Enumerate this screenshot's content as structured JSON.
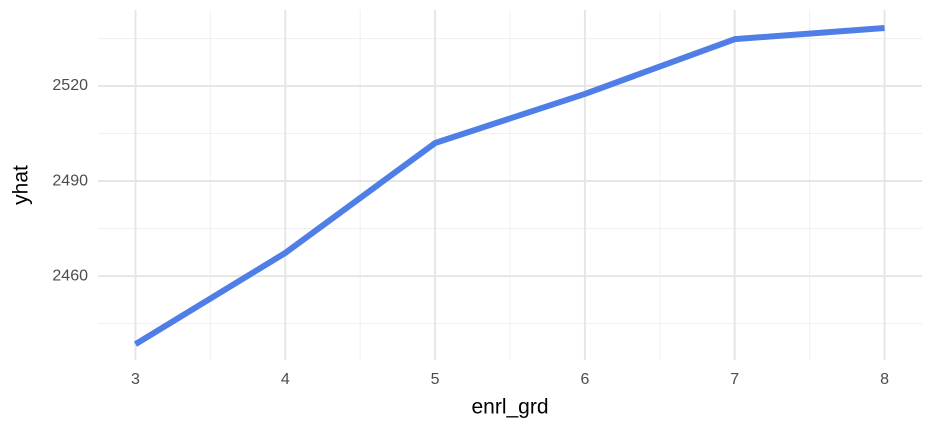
{
  "chart_data": {
    "type": "line",
    "x_label": "enrl_grd",
    "y_label": "yhat",
    "x": [
      3,
      4,
      5,
      6,
      7,
      8
    ],
    "series": [
      {
        "name": "yhat",
        "color": "#4f7fe6",
        "values": [
          2438.5,
          2467.3,
          2502,
          2517.5,
          2534.8,
          2538.3
        ]
      }
    ],
    "xlim": [
      2.75,
      8.25
    ],
    "xticks": [
      3,
      4,
      5,
      6,
      7,
      8
    ],
    "ylim": [
      2433.5,
      2544
    ],
    "yticks": [
      2460,
      2490,
      2520
    ],
    "minor_xticks": [
      3.5,
      4.5,
      5.5,
      6.5,
      7.5
    ],
    "minor_yticks": [
      2445,
      2475,
      2505,
      2535
    ],
    "grid": true
  }
}
